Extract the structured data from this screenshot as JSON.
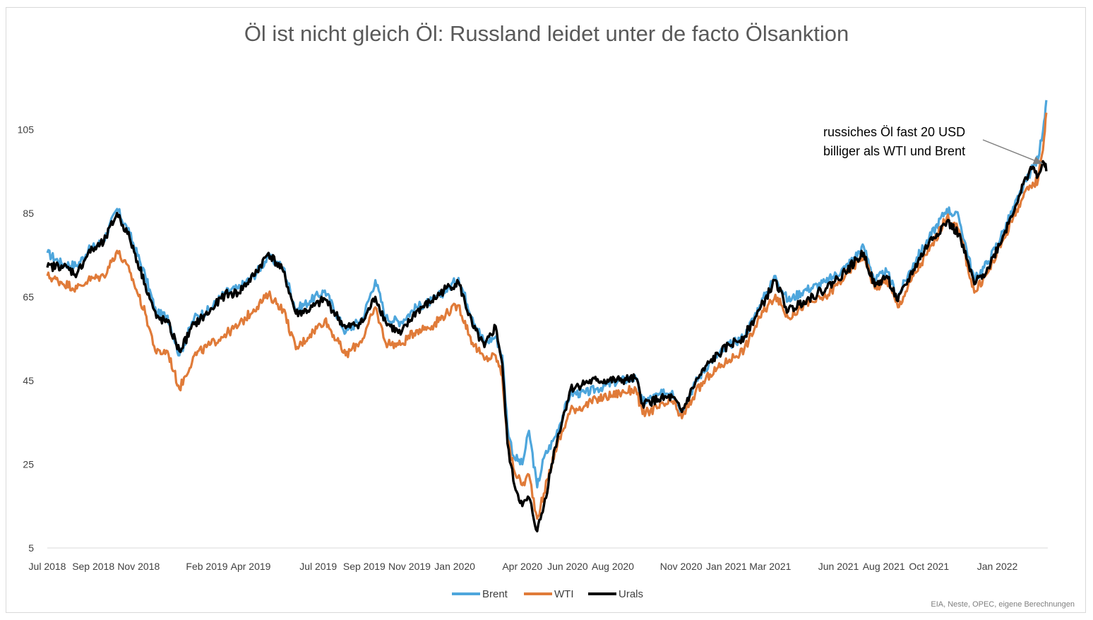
{
  "chart_data": {
    "type": "line",
    "title": "Öl ist nicht gleich Öl: Russland leidet unter de facto Ölsanktion",
    "xlabel": "",
    "ylabel": "",
    "source": "EIA, Neste, OPEC, eigene Berechnungen",
    "ylim": [
      5,
      115
    ],
    "yticks": [
      5,
      25,
      45,
      65,
      85,
      105
    ],
    "x_range": [
      "2018-07-01",
      "2022-03-10"
    ],
    "xticks": [
      {
        "date": "2018-07-01",
        "label": "Jul 2018"
      },
      {
        "date": "2018-09-01",
        "label": "Sep 2018"
      },
      {
        "date": "2018-11-01",
        "label": "Nov 2018"
      },
      {
        "date": "2019-02-01",
        "label": "Feb 2019"
      },
      {
        "date": "2019-04-01",
        "label": "Apr 2019"
      },
      {
        "date": "2019-07-01",
        "label": "Jul 2019"
      },
      {
        "date": "2019-09-01",
        "label": "Sep 2019"
      },
      {
        "date": "2019-11-01",
        "label": "Nov 2019"
      },
      {
        "date": "2020-01-01",
        "label": "Jan 2020"
      },
      {
        "date": "2020-04-01",
        "label": "Apr 2020"
      },
      {
        "date": "2020-06-01",
        "label": "Jun 2020"
      },
      {
        "date": "2020-08-01",
        "label": "Aug 2020"
      },
      {
        "date": "2020-11-01",
        "label": "Nov 2020"
      },
      {
        "date": "2021-01-01",
        "label": "Jan 2021"
      },
      {
        "date": "2021-03-01",
        "label": "Mar 2021"
      },
      {
        "date": "2021-06-01",
        "label": "Jun 2021"
      },
      {
        "date": "2021-08-01",
        "label": "Aug 2021"
      },
      {
        "date": "2021-10-01",
        "label": "Oct 2021"
      },
      {
        "date": "2022-01-01",
        "label": "Jan 2022"
      }
    ],
    "legend_position": "bottom",
    "series": [
      {
        "name": "Brent",
        "color": "#4ea6dc",
        "points": [
          [
            "2018-07-01",
            75.5
          ],
          [
            "2018-07-20",
            73
          ],
          [
            "2018-08-10",
            72.5
          ],
          [
            "2018-08-25",
            76
          ],
          [
            "2018-09-15",
            78.5
          ],
          [
            "2018-10-03",
            86
          ],
          [
            "2018-10-20",
            80
          ],
          [
            "2018-11-10",
            70
          ],
          [
            "2018-11-25",
            61
          ],
          [
            "2018-12-10",
            60.5
          ],
          [
            "2018-12-26",
            51
          ],
          [
            "2019-01-15",
            60
          ],
          [
            "2019-02-05",
            62
          ],
          [
            "2019-02-25",
            66
          ],
          [
            "2019-03-15",
            67
          ],
          [
            "2019-04-05",
            70
          ],
          [
            "2019-04-25",
            74.5
          ],
          [
            "2019-05-15",
            72
          ],
          [
            "2019-06-01",
            62
          ],
          [
            "2019-06-20",
            64
          ],
          [
            "2019-07-10",
            66.5
          ],
          [
            "2019-08-07",
            56.5
          ],
          [
            "2019-08-30",
            60
          ],
          [
            "2019-09-16",
            69
          ],
          [
            "2019-09-30",
            60
          ],
          [
            "2019-10-20",
            59
          ],
          [
            "2019-11-10",
            62.5
          ],
          [
            "2019-12-01",
            64
          ],
          [
            "2019-12-20",
            66.5
          ],
          [
            "2020-01-06",
            69.5
          ],
          [
            "2020-01-25",
            60
          ],
          [
            "2020-02-10",
            54
          ],
          [
            "2020-02-25",
            55.5
          ],
          [
            "2020-03-05",
            51
          ],
          [
            "2020-03-12",
            34
          ],
          [
            "2020-03-20",
            27
          ],
          [
            "2020-04-01",
            25
          ],
          [
            "2020-04-10",
            33
          ],
          [
            "2020-04-21",
            19.5
          ],
          [
            "2020-04-30",
            26.5
          ],
          [
            "2020-05-15",
            31.5
          ],
          [
            "2020-06-05",
            42
          ],
          [
            "2020-06-25",
            42
          ],
          [
            "2020-07-10",
            43
          ],
          [
            "2020-08-10",
            45
          ],
          [
            "2020-09-01",
            45.5
          ],
          [
            "2020-09-10",
            40
          ],
          [
            "2020-10-01",
            41.5
          ],
          [
            "2020-10-20",
            42.5
          ],
          [
            "2020-11-02",
            37.5
          ],
          [
            "2020-11-20",
            44.5
          ],
          [
            "2020-12-10",
            49.5
          ],
          [
            "2021-01-05",
            53.5
          ],
          [
            "2021-01-25",
            55.5
          ],
          [
            "2021-02-15",
            63
          ],
          [
            "2021-03-08",
            70
          ],
          [
            "2021-03-25",
            64
          ],
          [
            "2021-04-15",
            66.5
          ],
          [
            "2021-05-15",
            68.5
          ],
          [
            "2021-06-10",
            72
          ],
          [
            "2021-07-05",
            77
          ],
          [
            "2021-07-20",
            69
          ],
          [
            "2021-08-05",
            71
          ],
          [
            "2021-08-20",
            65
          ],
          [
            "2021-09-10",
            73
          ],
          [
            "2021-10-01",
            79
          ],
          [
            "2021-10-25",
            86
          ],
          [
            "2021-11-10",
            84
          ],
          [
            "2021-12-01",
            69
          ],
          [
            "2021-12-20",
            73.5
          ],
          [
            "2022-01-10",
            81
          ],
          [
            "2022-01-30",
            89
          ],
          [
            "2022-02-15",
            95
          ],
          [
            "2022-02-25",
            98
          ],
          [
            "2022-03-05",
            107
          ],
          [
            "2022-03-08",
            112
          ]
        ]
      },
      {
        "name": "WTI",
        "color": "#e07b39",
        "points": [
          [
            "2018-07-01",
            70
          ],
          [
            "2018-07-20",
            68.5
          ],
          [
            "2018-08-10",
            67
          ],
          [
            "2018-08-25",
            69
          ],
          [
            "2018-09-15",
            70
          ],
          [
            "2018-10-03",
            76
          ],
          [
            "2018-10-20",
            71
          ],
          [
            "2018-11-10",
            61
          ],
          [
            "2018-11-25",
            51.5
          ],
          [
            "2018-12-10",
            52
          ],
          [
            "2018-12-26",
            43
          ],
          [
            "2019-01-15",
            51
          ],
          [
            "2019-02-05",
            53.5
          ],
          [
            "2019-02-25",
            56
          ],
          [
            "2019-03-15",
            58
          ],
          [
            "2019-04-05",
            62
          ],
          [
            "2019-04-25",
            65.5
          ],
          [
            "2019-05-15",
            62
          ],
          [
            "2019-06-01",
            52.5
          ],
          [
            "2019-06-20",
            56
          ],
          [
            "2019-07-10",
            59.5
          ],
          [
            "2019-08-07",
            51
          ],
          [
            "2019-08-30",
            55
          ],
          [
            "2019-09-16",
            62.5
          ],
          [
            "2019-09-30",
            54
          ],
          [
            "2019-10-20",
            53.5
          ],
          [
            "2019-11-10",
            57
          ],
          [
            "2019-12-01",
            58
          ],
          [
            "2019-12-20",
            61
          ],
          [
            "2020-01-06",
            63
          ],
          [
            "2020-01-25",
            54
          ],
          [
            "2020-02-10",
            50
          ],
          [
            "2020-02-25",
            51
          ],
          [
            "2020-03-05",
            46
          ],
          [
            "2020-03-12",
            31
          ],
          [
            "2020-03-20",
            24
          ],
          [
            "2020-04-01",
            20
          ],
          [
            "2020-04-10",
            22.5
          ],
          [
            "2020-04-21",
            12
          ],
          [
            "2020-04-30",
            18
          ],
          [
            "2020-05-15",
            28
          ],
          [
            "2020-06-05",
            38
          ],
          [
            "2020-06-25",
            39
          ],
          [
            "2020-07-10",
            40.5
          ],
          [
            "2020-08-10",
            42
          ],
          [
            "2020-09-01",
            43
          ],
          [
            "2020-09-10",
            37
          ],
          [
            "2020-10-01",
            38.5
          ],
          [
            "2020-10-20",
            40
          ],
          [
            "2020-11-02",
            36
          ],
          [
            "2020-11-20",
            42
          ],
          [
            "2020-12-10",
            46.5
          ],
          [
            "2021-01-05",
            50
          ],
          [
            "2021-01-25",
            52.5
          ],
          [
            "2021-02-15",
            60
          ],
          [
            "2021-03-08",
            65.5
          ],
          [
            "2021-03-25",
            60
          ],
          [
            "2021-04-15",
            63
          ],
          [
            "2021-05-15",
            65
          ],
          [
            "2021-06-10",
            70
          ],
          [
            "2021-07-05",
            75
          ],
          [
            "2021-07-20",
            67
          ],
          [
            "2021-08-05",
            69
          ],
          [
            "2021-08-20",
            62.5
          ],
          [
            "2021-09-10",
            70
          ],
          [
            "2021-10-01",
            76
          ],
          [
            "2021-10-25",
            84
          ],
          [
            "2021-11-10",
            81
          ],
          [
            "2021-12-01",
            66
          ],
          [
            "2021-12-20",
            71
          ],
          [
            "2022-01-10",
            79
          ],
          [
            "2022-01-30",
            87
          ],
          [
            "2022-02-15",
            91.5
          ],
          [
            "2022-02-25",
            93
          ],
          [
            "2022-03-05",
            103
          ],
          [
            "2022-03-08",
            109
          ]
        ]
      },
      {
        "name": "Urals",
        "color": "#000000",
        "points": [
          [
            "2018-07-01",
            72
          ],
          [
            "2018-07-20",
            72.5
          ],
          [
            "2018-08-10",
            70.5
          ],
          [
            "2018-08-25",
            75.5
          ],
          [
            "2018-09-15",
            78
          ],
          [
            "2018-10-03",
            85
          ],
          [
            "2018-10-20",
            79
          ],
          [
            "2018-11-10",
            68
          ],
          [
            "2018-11-25",
            60
          ],
          [
            "2018-12-10",
            59
          ],
          [
            "2018-12-26",
            52
          ],
          [
            "2019-01-15",
            58.5
          ],
          [
            "2019-02-05",
            61.5
          ],
          [
            "2019-02-25",
            65.5
          ],
          [
            "2019-03-15",
            66
          ],
          [
            "2019-04-05",
            70
          ],
          [
            "2019-04-25",
            75.5
          ],
          [
            "2019-05-15",
            71
          ],
          [
            "2019-06-01",
            61
          ],
          [
            "2019-06-20",
            62
          ],
          [
            "2019-07-10",
            64.5
          ],
          [
            "2019-08-07",
            57.5
          ],
          [
            "2019-08-30",
            59
          ],
          [
            "2019-09-16",
            65
          ],
          [
            "2019-09-30",
            59
          ],
          [
            "2019-10-20",
            56
          ],
          [
            "2019-11-10",
            61.5
          ],
          [
            "2019-12-01",
            64
          ],
          [
            "2019-12-20",
            67
          ],
          [
            "2020-01-06",
            68.5
          ],
          [
            "2020-01-25",
            58
          ],
          [
            "2020-02-10",
            53
          ],
          [
            "2020-02-25",
            58
          ],
          [
            "2020-03-05",
            49
          ],
          [
            "2020-03-12",
            30
          ],
          [
            "2020-03-20",
            21
          ],
          [
            "2020-04-01",
            15
          ],
          [
            "2020-04-10",
            17
          ],
          [
            "2020-04-21",
            9
          ],
          [
            "2020-04-30",
            15
          ],
          [
            "2020-05-15",
            29
          ],
          [
            "2020-06-05",
            43
          ],
          [
            "2020-06-25",
            44.5
          ],
          [
            "2020-07-10",
            45
          ],
          [
            "2020-08-10",
            45
          ],
          [
            "2020-09-01",
            45.5
          ],
          [
            "2020-09-10",
            39.5
          ],
          [
            "2020-10-01",
            40.5
          ],
          [
            "2020-10-20",
            41
          ],
          [
            "2020-11-02",
            37.5
          ],
          [
            "2020-11-20",
            44.5
          ],
          [
            "2020-12-10",
            49.5
          ],
          [
            "2021-01-05",
            53.5
          ],
          [
            "2021-01-25",
            55.5
          ],
          [
            "2021-02-15",
            62
          ],
          [
            "2021-03-08",
            69
          ],
          [
            "2021-03-25",
            61.5
          ],
          [
            "2021-04-15",
            64
          ],
          [
            "2021-05-15",
            67
          ],
          [
            "2021-06-10",
            71
          ],
          [
            "2021-07-05",
            75.5
          ],
          [
            "2021-07-20",
            67.5
          ],
          [
            "2021-08-05",
            70
          ],
          [
            "2021-08-20",
            64
          ],
          [
            "2021-09-10",
            71.5
          ],
          [
            "2021-10-01",
            78
          ],
          [
            "2021-10-25",
            83
          ],
          [
            "2021-11-10",
            80
          ],
          [
            "2021-12-01",
            68
          ],
          [
            "2021-12-20",
            72
          ],
          [
            "2022-01-10",
            80
          ],
          [
            "2022-01-30",
            89
          ],
          [
            "2022-02-15",
            96
          ],
          [
            "2022-02-25",
            94
          ],
          [
            "2022-03-05",
            97
          ],
          [
            "2022-03-08",
            95
          ]
        ]
      }
    ],
    "annotations": [
      {
        "lines": [
          "russiches Öl fast 20 USD",
          "billiger als WTI und Brent"
        ],
        "target": {
          "date": "2022-02-25",
          "value": 97
        }
      }
    ]
  }
}
